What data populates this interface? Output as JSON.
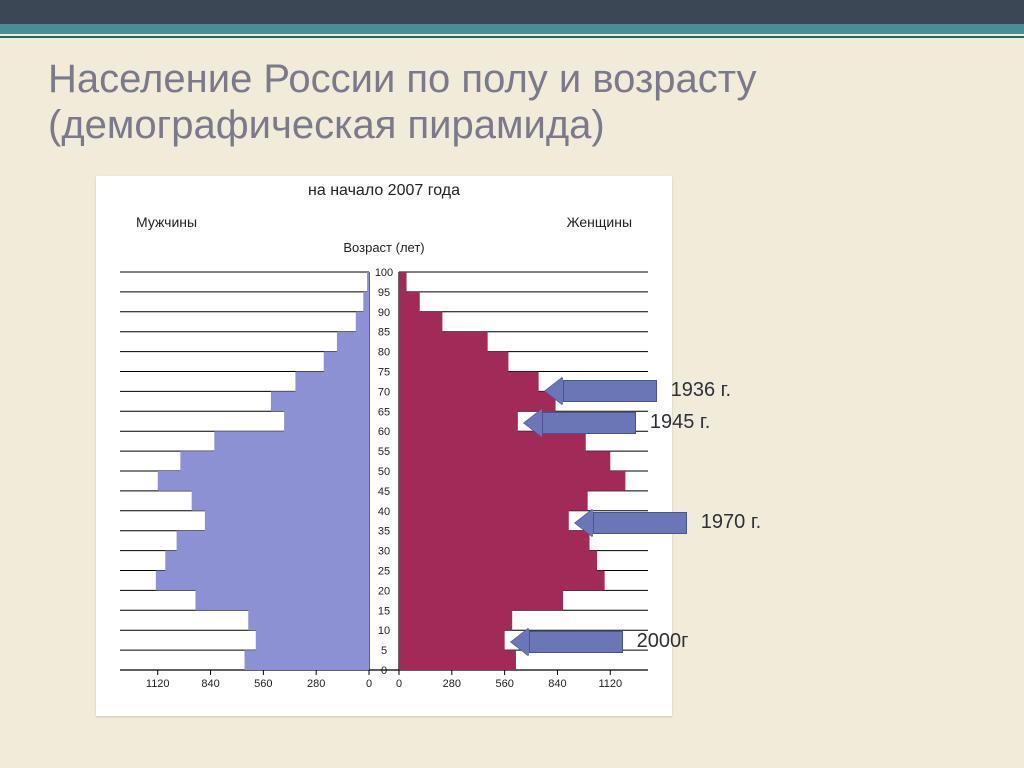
{
  "title": "Население России по полу и возрасту (демографическая пирамида)",
  "chart": {
    "type": "population-pyramid",
    "subtitle": "на начало 2007 года",
    "male_label": "Мужчины",
    "female_label": "Женщины",
    "age_axis_label": "Возраст (лет)",
    "male_color": "#8c91d4",
    "female_color": "#a12a58",
    "background": "#ffffff",
    "grid_color": "#000000",
    "age_min": 0,
    "age_max": 100,
    "age_step": 5,
    "x_ticks": [
      0,
      280,
      560,
      840,
      1120
    ],
    "x_max": 1320,
    "bars": [
      {
        "age": 0,
        "m": 660,
        "f": 620
      },
      {
        "age": 5,
        "m": 600,
        "f": 560
      },
      {
        "age": 10,
        "m": 640,
        "f": 600
      },
      {
        "age": 15,
        "m": 920,
        "f": 870
      },
      {
        "age": 20,
        "m": 1130,
        "f": 1090
      },
      {
        "age": 25,
        "m": 1080,
        "f": 1050
      },
      {
        "age": 30,
        "m": 1020,
        "f": 1010
      },
      {
        "age": 35,
        "m": 870,
        "f": 900
      },
      {
        "age": 40,
        "m": 940,
        "f": 1000
      },
      {
        "age": 45,
        "m": 1120,
        "f": 1200
      },
      {
        "age": 50,
        "m": 1000,
        "f": 1120
      },
      {
        "age": 55,
        "m": 820,
        "f": 990
      },
      {
        "age": 60,
        "m": 450,
        "f": 630
      },
      {
        "age": 65,
        "m": 520,
        "f": 830
      },
      {
        "age": 70,
        "m": 390,
        "f": 740
      },
      {
        "age": 75,
        "m": 240,
        "f": 580
      },
      {
        "age": 80,
        "m": 170,
        "f": 470
      },
      {
        "age": 85,
        "m": 70,
        "f": 230
      },
      {
        "age": 90,
        "m": 30,
        "f": 110
      },
      {
        "age": 95,
        "m": 10,
        "f": 40
      }
    ]
  },
  "annotations": [
    {
      "label": "1936 г.",
      "age": 70
    },
    {
      "label": "1945 г.",
      "age": 62
    },
    {
      "label": "1970 г.",
      "age": 37
    },
    {
      "label": "2000г",
      "age": 7
    }
  ],
  "slide_bg": "#f1ebd9",
  "topbar_color": "#3b4754",
  "accent_color": "#4a8e94",
  "title_color": "#7a7a8a",
  "arrow_color": "#6a76b5"
}
